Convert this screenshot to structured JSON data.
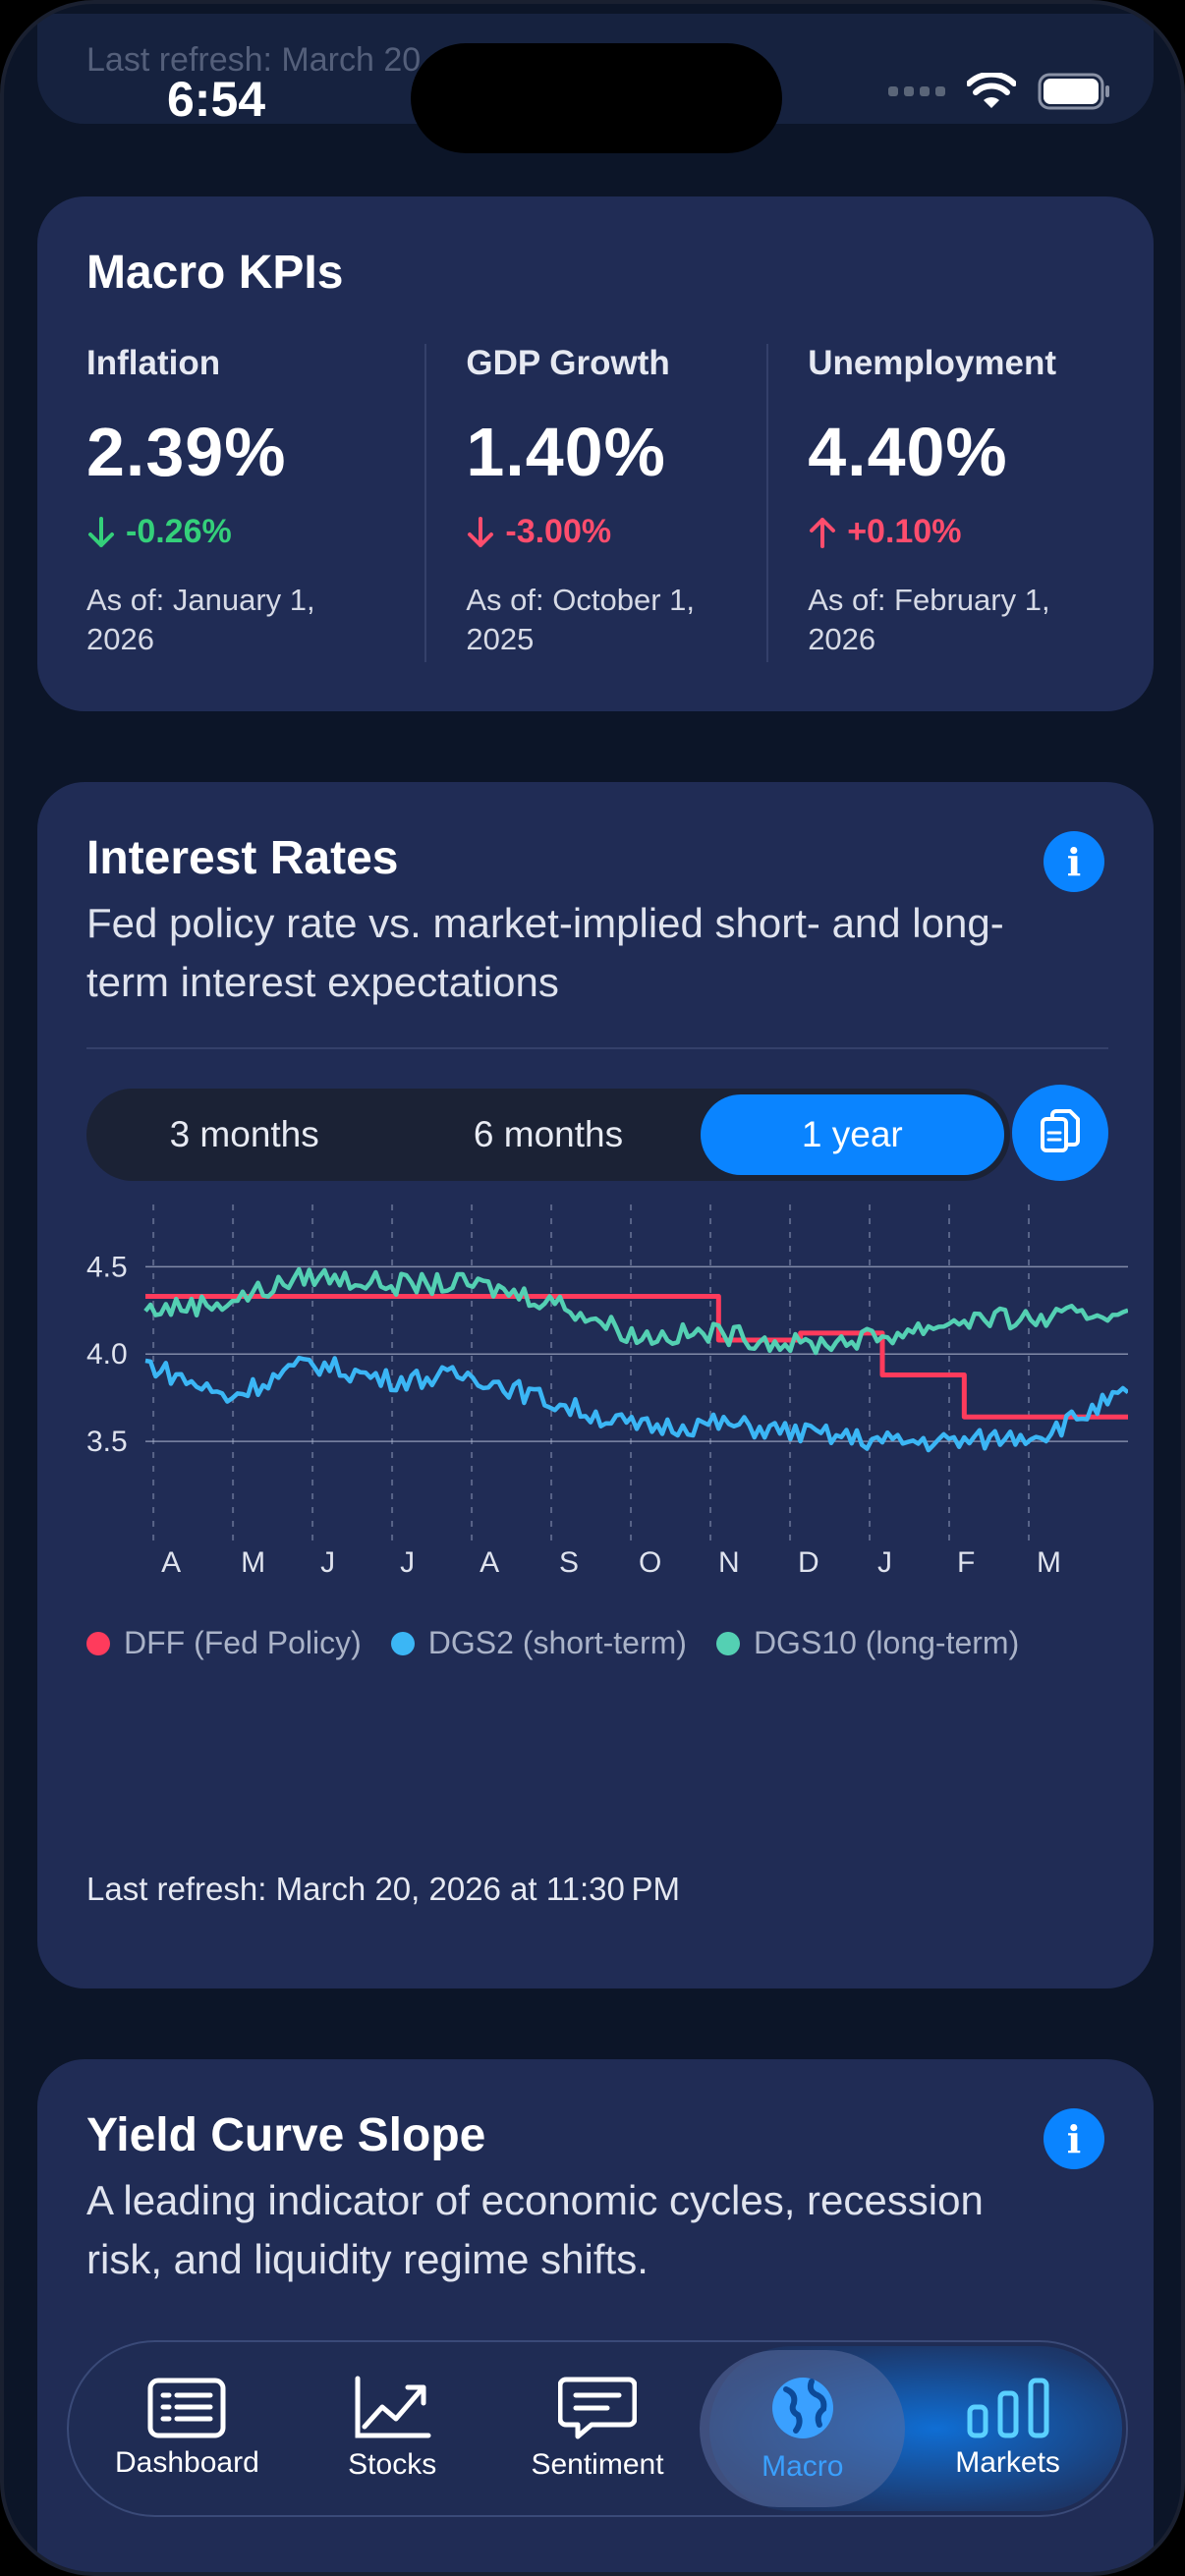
{
  "status_bar": {
    "time": "6:54"
  },
  "top_ghost": {
    "text": "Last refresh: March 20, 2026 at 11:30 PM"
  },
  "kpis": {
    "title": "Macro KPIs",
    "items": [
      {
        "label": "Inflation",
        "value": "2.39%",
        "change": "-0.26%",
        "direction": "down",
        "color": "#34d07a",
        "as_of": "As of: January 1, 2026"
      },
      {
        "label": "GDP Growth",
        "value": "1.40%",
        "change": "-3.00%",
        "direction": "down",
        "color": "#ff4d6d",
        "as_of": "As of: October 1, 2025"
      },
      {
        "label": "Unemployment",
        "value": "4.40%",
        "change": "+0.10%",
        "direction": "up",
        "color": "#ff4d6d",
        "as_of": "As of: February 1, 2026"
      }
    ]
  },
  "rates": {
    "title": "Interest Rates",
    "subtitle": "Fed policy rate vs. market-implied short- and long-term interest expectations",
    "ranges": [
      "3 months",
      "6 months",
      "1 year"
    ],
    "selected_range": "1 year",
    "last_refresh": "Last refresh: March 20, 2026 at 11:30 PM"
  },
  "chart_data": {
    "type": "line",
    "x": [
      "Mar",
      "Apr",
      "May",
      "Jun",
      "Jul",
      "Aug",
      "Sep",
      "Oct",
      "Nov",
      "Dec",
      "Jan",
      "Feb",
      "Mar"
    ],
    "xticks": [
      "A",
      "M",
      "J",
      "J",
      "A",
      "S",
      "O",
      "N",
      "D",
      "J",
      "F",
      "M"
    ],
    "yticks": [
      "4.5",
      "4.0",
      "3.5"
    ],
    "ylim": [
      3.0,
      4.8
    ],
    "grid": true,
    "legend_position": "bottom",
    "series": [
      {
        "name": "DFF (Fed Policy)",
        "color": "#ff3b5c",
        "values": [
          4.33,
          4.33,
          4.33,
          4.33,
          4.33,
          4.33,
          4.33,
          4.08,
          4.12,
          3.88,
          3.64,
          3.64,
          3.64
        ]
      },
      {
        "name": "DGS2 (short-term)",
        "color": "#3bb6f5",
        "values": [
          3.95,
          3.75,
          3.95,
          3.85,
          3.88,
          3.72,
          3.58,
          3.6,
          3.55,
          3.5,
          3.5,
          3.55,
          3.78
        ]
      },
      {
        "name": "DGS10 (long-term)",
        "color": "#54d0b3",
        "values": [
          4.25,
          4.3,
          4.45,
          4.4,
          4.4,
          4.3,
          4.1,
          4.12,
          4.05,
          4.1,
          4.2,
          4.2,
          4.25
        ]
      }
    ]
  },
  "yield": {
    "title": "Yield Curve Slope",
    "subtitle": "A leading indicator of economic cycles, recession risk, and liquidity regime shifts."
  },
  "tabs": [
    {
      "label": "Dashboard",
      "icon": "list-icon"
    },
    {
      "label": "Stocks",
      "icon": "chart-up-icon"
    },
    {
      "label": "Sentiment",
      "icon": "chat-icon"
    },
    {
      "label": "Macro",
      "icon": "globe-icon",
      "active": true
    },
    {
      "label": "Markets",
      "icon": "bars-icon"
    }
  ]
}
